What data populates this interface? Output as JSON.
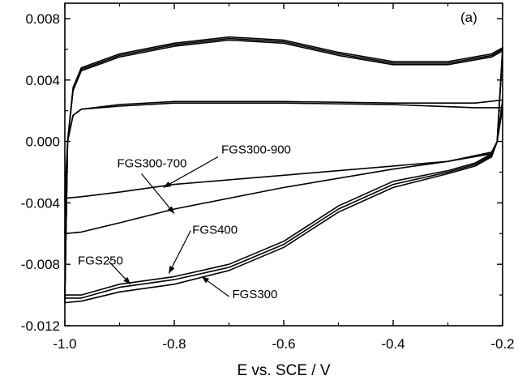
{
  "chart_data": {
    "type": "line",
    "panel_label": "(a)",
    "xlabel": "E vs. SCE / V",
    "ylabel": "",
    "xlim": [
      -1.0,
      -0.2
    ],
    "ylim": [
      -0.012,
      0.009
    ],
    "x_ticks": [
      -1.0,
      -0.8,
      -0.6,
      -0.4,
      -0.2
    ],
    "x_tick_labels": [
      "-1.0",
      "-0.8",
      "-0.6",
      "-0.4",
      "-0.2"
    ],
    "y_ticks": [
      -0.012,
      -0.008,
      -0.004,
      0.0,
      0.004,
      0.008
    ],
    "y_tick_labels": [
      "-0.012",
      "-0.008",
      "-0.004",
      "0.000",
      "0.004",
      "0.008"
    ],
    "grid": false,
    "series": [
      {
        "name": "FGS250",
        "upper": [
          [
            -1.0,
            -0.01
          ],
          [
            -0.995,
            0.0
          ],
          [
            -0.985,
            0.0035
          ],
          [
            -0.97,
            0.0048
          ],
          [
            -0.9,
            0.0057
          ],
          [
            -0.8,
            0.0064
          ],
          [
            -0.7,
            0.0068
          ],
          [
            -0.6,
            0.0066
          ],
          [
            -0.5,
            0.0058
          ],
          [
            -0.4,
            0.0052
          ],
          [
            -0.3,
            0.0052
          ],
          [
            -0.22,
            0.0057
          ],
          [
            -0.2,
            0.0061
          ]
        ],
        "lower": [
          [
            -0.2,
            0.0061
          ],
          [
            -0.21,
            0.0
          ],
          [
            -0.22,
            -0.0008
          ],
          [
            -0.25,
            -0.0014
          ],
          [
            -0.3,
            -0.0019
          ],
          [
            -0.4,
            -0.0026
          ],
          [
            -0.5,
            -0.0042
          ],
          [
            -0.6,
            -0.0065
          ],
          [
            -0.7,
            -0.008
          ],
          [
            -0.8,
            -0.0088
          ],
          [
            -0.9,
            -0.0093
          ],
          [
            -0.97,
            -0.01
          ],
          [
            -1.0,
            -0.01
          ]
        ]
      },
      {
        "name": "FGS400",
        "upper": [
          [
            -1.0,
            -0.0102
          ],
          [
            -0.995,
            0.0
          ],
          [
            -0.985,
            0.0034
          ],
          [
            -0.97,
            0.0047
          ],
          [
            -0.9,
            0.0056
          ],
          [
            -0.8,
            0.0063
          ],
          [
            -0.7,
            0.0067
          ],
          [
            -0.6,
            0.0065
          ],
          [
            -0.5,
            0.0057
          ],
          [
            -0.4,
            0.0051
          ],
          [
            -0.3,
            0.0051
          ],
          [
            -0.22,
            0.0056
          ],
          [
            -0.2,
            0.006
          ]
        ],
        "lower": [
          [
            -0.2,
            0.006
          ],
          [
            -0.21,
            0.0
          ],
          [
            -0.22,
            -0.0009
          ],
          [
            -0.25,
            -0.0015
          ],
          [
            -0.3,
            -0.002
          ],
          [
            -0.4,
            -0.0028
          ],
          [
            -0.5,
            -0.0044
          ],
          [
            -0.6,
            -0.0067
          ],
          [
            -0.7,
            -0.0082
          ],
          [
            -0.8,
            -0.009
          ],
          [
            -0.9,
            -0.0095
          ],
          [
            -0.97,
            -0.0102
          ],
          [
            -1.0,
            -0.0102
          ]
        ]
      },
      {
        "name": "FGS300",
        "upper": [
          [
            -1.0,
            -0.0105
          ],
          [
            -0.995,
            0.0
          ],
          [
            -0.985,
            0.0033
          ],
          [
            -0.97,
            0.0046
          ],
          [
            -0.9,
            0.0055
          ],
          [
            -0.8,
            0.0062
          ],
          [
            -0.7,
            0.0066
          ],
          [
            -0.6,
            0.0064
          ],
          [
            -0.5,
            0.0056
          ],
          [
            -0.4,
            0.005
          ],
          [
            -0.3,
            0.005
          ],
          [
            -0.22,
            0.0055
          ],
          [
            -0.2,
            0.0059
          ]
        ],
        "lower": [
          [
            -0.2,
            0.0059
          ],
          [
            -0.21,
            0.0
          ],
          [
            -0.22,
            -0.001
          ],
          [
            -0.25,
            -0.0016
          ],
          [
            -0.3,
            -0.0021
          ],
          [
            -0.4,
            -0.003
          ],
          [
            -0.5,
            -0.0046
          ],
          [
            -0.6,
            -0.0069
          ],
          [
            -0.7,
            -0.0084
          ],
          [
            -0.8,
            -0.0093
          ],
          [
            -0.9,
            -0.0098
          ],
          [
            -0.97,
            -0.0104
          ],
          [
            -1.0,
            -0.0105
          ]
        ]
      },
      {
        "name": "FGS300-900",
        "upper": [
          [
            -1.0,
            -0.0037
          ],
          [
            -0.995,
            0.0
          ],
          [
            -0.985,
            0.0017
          ],
          [
            -0.97,
            0.0021
          ],
          [
            -0.9,
            0.0024
          ],
          [
            -0.8,
            0.0026
          ],
          [
            -0.6,
            0.0026
          ],
          [
            -0.4,
            0.0025
          ],
          [
            -0.25,
            0.0025
          ],
          [
            -0.2,
            0.0027
          ]
        ],
        "lower": [
          [
            -0.2,
            0.0027
          ],
          [
            -0.21,
            0.0
          ],
          [
            -0.22,
            -0.0007
          ],
          [
            -0.3,
            -0.0013
          ],
          [
            -0.4,
            -0.0016
          ],
          [
            -0.6,
            -0.0022
          ],
          [
            -0.8,
            -0.0028
          ],
          [
            -0.9,
            -0.0033
          ],
          [
            -0.97,
            -0.0036
          ],
          [
            -1.0,
            -0.0037
          ]
        ]
      },
      {
        "name": "FGS300-700",
        "upper": [
          [
            -1.0,
            -0.006
          ],
          [
            -0.995,
            0.0
          ],
          [
            -0.985,
            0.0017
          ],
          [
            -0.97,
            0.0021
          ],
          [
            -0.9,
            0.0023
          ],
          [
            -0.8,
            0.0025
          ],
          [
            -0.6,
            0.0025
          ],
          [
            -0.4,
            0.0024
          ],
          [
            -0.25,
            0.0022
          ],
          [
            -0.2,
            0.0022
          ]
        ],
        "lower": [
          [
            -0.2,
            0.0022
          ],
          [
            -0.21,
            0.0
          ],
          [
            -0.22,
            -0.0008
          ],
          [
            -0.3,
            -0.0013
          ],
          [
            -0.4,
            -0.0018
          ],
          [
            -0.6,
            -0.003
          ],
          [
            -0.8,
            -0.0044
          ],
          [
            -0.9,
            -0.0053
          ],
          [
            -0.97,
            -0.0059
          ],
          [
            -1.0,
            -0.006
          ]
        ]
      }
    ],
    "annotations": [
      {
        "text": "FGS300-900",
        "anchor": [
          -0.72,
          -0.001
        ],
        "target": [
          -0.82,
          -0.003
        ]
      },
      {
        "text": "FGS300-700",
        "anchor": [
          -0.86,
          -0.0021
        ],
        "target": [
          -0.8,
          -0.0047
        ]
      },
      {
        "text": "FGS400",
        "anchor": [
          -0.77,
          -0.0058
        ],
        "target": [
          -0.81,
          -0.0086
        ]
      },
      {
        "text": "FGS250",
        "anchor": [
          -0.92,
          -0.0078
        ],
        "target": [
          -0.88,
          -0.0093
        ]
      },
      {
        "text": "FGS300",
        "anchor": [
          -0.7,
          -0.0101
        ],
        "target": [
          -0.75,
          -0.0088
        ]
      }
    ]
  }
}
